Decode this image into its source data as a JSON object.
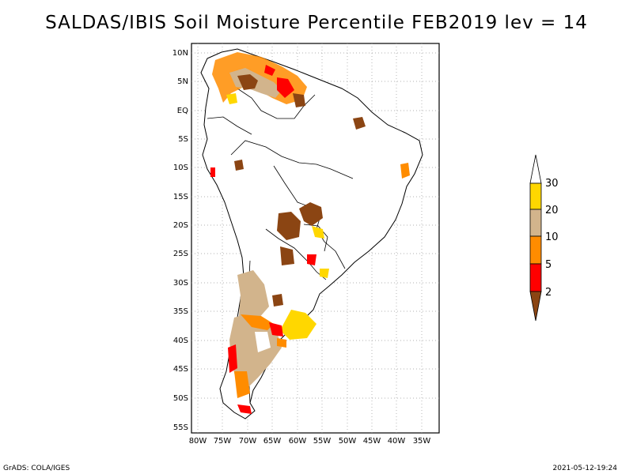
{
  "title": "SALDAS/IBIS Soil Moisture Percentile FEB2019 lev = 14",
  "lat_labels": [
    "10N",
    "5N",
    "EQ",
    "5S",
    "10S",
    "15S",
    "20S",
    "25S",
    "30S",
    "35S",
    "40S",
    "45S",
    "50S",
    "55S"
  ],
  "lon_labels": [
    "80W",
    "75W",
    "70W",
    "65W",
    "60W",
    "55W",
    "50W",
    "45W",
    "40W",
    "35W"
  ],
  "colorbar": {
    "labels": [
      "30",
      "20",
      "10",
      "5",
      "2"
    ],
    "colors": {
      "above": "#ffffff",
      "c20_30": "#ffd700",
      "c10_20": "#d2b48c",
      "c5_10": "#ff8c00",
      "c2_5": "#ff0000",
      "below": "#8b4513"
    }
  },
  "footer": {
    "left": "GrADS: COLA/IGES",
    "right": "2021-05-12-19:24"
  }
}
